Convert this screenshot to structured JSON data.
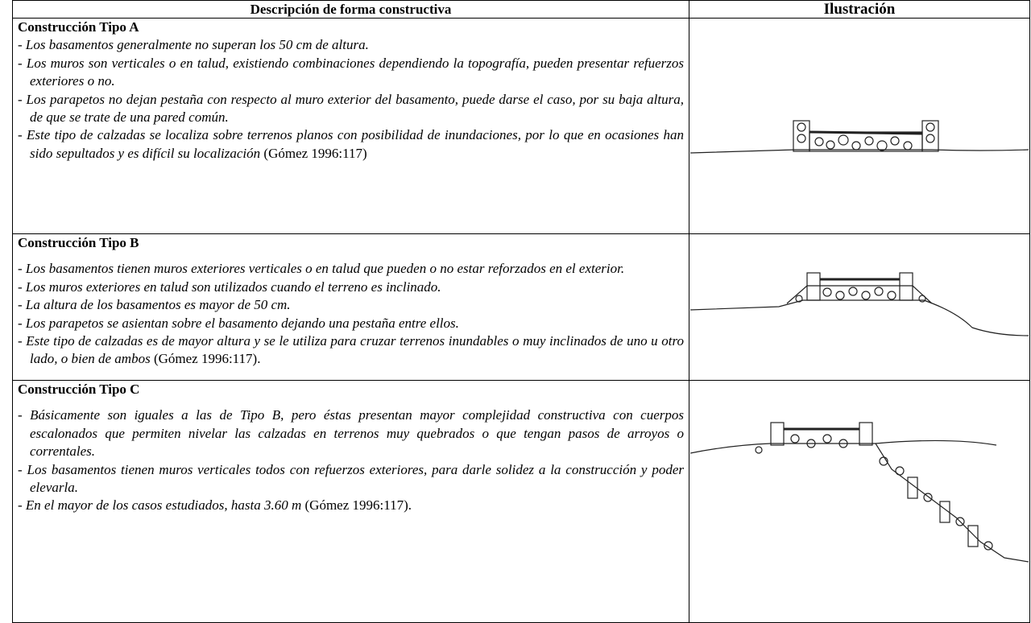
{
  "table": {
    "headers": [
      "Descripción de forma constructiva",
      "Ilustración"
    ],
    "rows": [
      {
        "title": "Construcción Tipo A",
        "items": [
          {
            "text": "- Los basamentos generalmente no superan los 50 cm de altura."
          },
          {
            "text": "- Los muros son verticales o en talud, existiendo combinaciones dependiendo la topografía, pueden presentar refuerzos exteriores o no."
          },
          {
            "text": "- Los parapetos no dejan pestaña con respecto al muro exterior del basamento, puede darse el caso, por su baja altura, de que se trate de una pared común."
          },
          {
            "text": "- Este tipo de calzadas se localiza sobre terrenos planos con posibilidad de inundaciones, por lo que en ocasiones han sido sepultados y es difícil su localización",
            "cite": "(Gómez 1996:117)"
          }
        ]
      },
      {
        "title": "Construcción Tipo B",
        "items": [
          {
            "text": "- Los basamentos tienen muros exteriores verticales o en talud que pueden o no estar reforzados en el exterior."
          },
          {
            "text": "- Los muros exteriores en talud son utilizados cuando el terreno es inclinado."
          },
          {
            "text": "- La altura de los basamentos es mayor de 50 cm."
          },
          {
            "text": "- Los parapetos se asientan sobre el basamento dejando una pestaña entre ellos."
          },
          {
            "text": "- Este tipo de calzadas es de mayor altura y se le utiliza para cruzar terrenos inundables o muy inclinados de uno u otro lado, o bien de ambos",
            "cite": "(Gómez 1996:117)."
          }
        ]
      },
      {
        "title": "Construcción Tipo C",
        "items": [
          {
            "text": "- Básicamente son iguales a las de Tipo B, pero éstas presentan mayor complejidad constructiva con cuerpos escalonados que permiten nivelar las calzadas en terrenos muy quebrados o que tengan pasos de arroyos o correntales."
          },
          {
            "text": "- Los basamentos tienen muros verticales todos con refuerzos exteriores, para darle solidez a la construcción y poder elevarla."
          },
          {
            "text": "- En el mayor de los casos estudiados, hasta 3.60 m",
            "cite": "(Gómez 1996:117)."
          }
        ]
      }
    ]
  }
}
